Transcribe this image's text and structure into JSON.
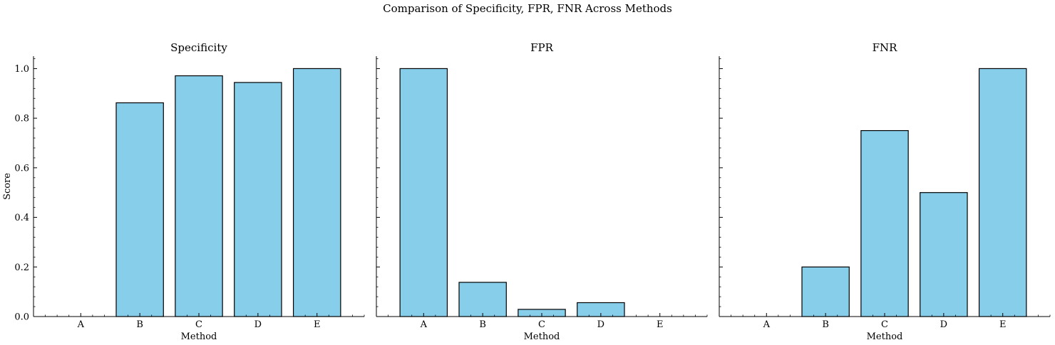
{
  "title": "Comparison of Specificity, FPR, FNR Across Methods",
  "colors": {
    "bar_fill": "#87CEEB",
    "bar_edge": "#000000"
  },
  "chart_data": [
    {
      "type": "bar",
      "title": "Specificity",
      "xlabel": "Method",
      "ylabel": "Score",
      "categories": [
        "A",
        "B",
        "C",
        "D",
        "E"
      ],
      "values": [
        0.0,
        0.862,
        0.971,
        0.944,
        1.0
      ],
      "ylim": [
        0,
        1.05
      ],
      "yticks": [
        "0.0",
        "0.2",
        "0.4",
        "0.6",
        "0.8",
        "1.0"
      ]
    },
    {
      "type": "bar",
      "title": "FPR",
      "xlabel": "Method",
      "ylabel": "",
      "categories": [
        "A",
        "B",
        "C",
        "D",
        "E"
      ],
      "values": [
        1.0,
        0.138,
        0.029,
        0.056,
        0.0
      ],
      "ylim": [
        0,
        1.05
      ]
    },
    {
      "type": "bar",
      "title": "FNR",
      "xlabel": "Method",
      "ylabel": "",
      "categories": [
        "A",
        "B",
        "C",
        "D",
        "E"
      ],
      "values": [
        0.0,
        0.2,
        0.75,
        0.5,
        1.0
      ],
      "ylim": [
        0,
        1.05
      ]
    }
  ]
}
